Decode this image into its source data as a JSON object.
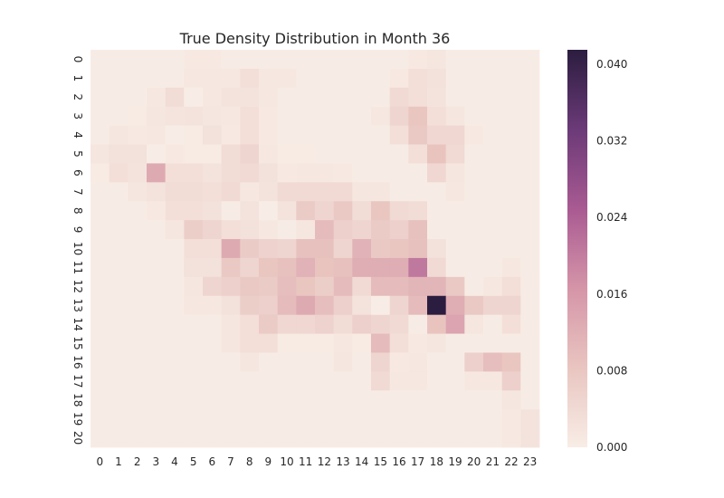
{
  "chart_data": {
    "type": "heatmap",
    "title": "True Density Distribution in Month 36",
    "x_ticks": [
      "0",
      "1",
      "2",
      "3",
      "4",
      "5",
      "6",
      "7",
      "8",
      "9",
      "10",
      "11",
      "12",
      "13",
      "14",
      "15",
      "16",
      "17",
      "18",
      "19",
      "20",
      "21",
      "22",
      "23"
    ],
    "y_ticks": [
      "0",
      "1",
      "2",
      "3",
      "4",
      "5",
      "6",
      "7",
      "8",
      "9",
      "10",
      "11",
      "12",
      "13",
      "14",
      "15",
      "16",
      "17",
      "18",
      "19",
      "20"
    ],
    "colorbar": {
      "ticks": [
        "0.000",
        "0.008",
        "0.016",
        "0.024",
        "0.032",
        "0.040"
      ],
      "vmin": 0.0,
      "vmax": 0.0415,
      "colors": [
        "#f8ede6",
        "#e9c5c0",
        "#d595a8",
        "#a95a92",
        "#6b3a78",
        "#2b1d3f"
      ]
    },
    "values": [
      [
        0.0003,
        0.0003,
        0.0003,
        0.0003,
        0.0003,
        0.0008,
        0.0008,
        0.0003,
        0.0003,
        0.0003,
        0.0003,
        0.0003,
        0.0003,
        0.0003,
        0.0003,
        0.0003,
        0.0003,
        0.0008,
        0.0015,
        0.0003,
        0.0003,
        0.0003,
        0.0003,
        0.0003
      ],
      [
        0.0003,
        0.0003,
        0.0003,
        0.0003,
        0.0003,
        0.001,
        0.0012,
        0.0012,
        0.003,
        0.0012,
        0.001,
        0.0003,
        0.0003,
        0.0003,
        0.0003,
        0.0003,
        0.0008,
        0.003,
        0.0025,
        0.0003,
        0.0003,
        0.0003,
        0.0003,
        0.0003
      ],
      [
        0.0003,
        0.0003,
        0.0003,
        0.001,
        0.0035,
        0.0,
        0.0012,
        0.002,
        0.002,
        0.0012,
        0.0003,
        0.0003,
        0.0003,
        0.0003,
        0.0003,
        0.0003,
        0.004,
        0.003,
        0.002,
        0.0003,
        0.0003,
        0.0003,
        0.0003,
        0.0003
      ],
      [
        0.0003,
        0.0003,
        0.0005,
        0.0015,
        0.0018,
        0.002,
        0.0015,
        0.001,
        0.003,
        0.0008,
        0.0003,
        0.0003,
        0.0003,
        0.0003,
        0.0003,
        0.001,
        0.005,
        0.008,
        0.003,
        0.0015,
        0.0003,
        0.0003,
        0.0003,
        0.0003
      ],
      [
        0.0003,
        0.0015,
        0.0008,
        0.001,
        0.0,
        0.0005,
        0.0025,
        0.0008,
        0.003,
        0.0008,
        0.0003,
        0.0003,
        0.0003,
        0.0003,
        0.0003,
        0.0003,
        0.003,
        0.0075,
        0.0045,
        0.0045,
        0.0008,
        0.0003,
        0.0003,
        0.0003
      ],
      [
        0.0015,
        0.0025,
        0.0025,
        0.0,
        0.0008,
        0.0005,
        0.0005,
        0.0035,
        0.005,
        0.001,
        0.0005,
        0.0005,
        0.0003,
        0.0003,
        0.0003,
        0.0003,
        0.0003,
        0.003,
        0.0085,
        0.004,
        0.0003,
        0.0003,
        0.0003,
        0.0003
      ],
      [
        0.0005,
        0.003,
        0.002,
        0.013,
        0.003,
        0.003,
        0.002,
        0.0035,
        0.004,
        0.0025,
        0.0008,
        0.001,
        0.0012,
        0.0008,
        0.0003,
        0.0003,
        0.0003,
        0.0003,
        0.0045,
        0.0015,
        0.0003,
        0.0003,
        0.0003,
        0.0003
      ],
      [
        0.0003,
        0.0003,
        0.0015,
        0.002,
        0.0035,
        0.0035,
        0.003,
        0.004,
        0.001,
        0.002,
        0.004,
        0.004,
        0.004,
        0.004,
        0.0015,
        0.0015,
        0.0003,
        0.0003,
        0.0003,
        0.001,
        0.0003,
        0.0003,
        0.0003,
        0.0003
      ],
      [
        0.0003,
        0.0003,
        0.0003,
        0.0008,
        0.003,
        0.003,
        0.0025,
        0.0003,
        0.002,
        0.0,
        0.002,
        0.007,
        0.005,
        0.0075,
        0.0035,
        0.008,
        0.004,
        0.0035,
        0.0003,
        0.0003,
        0.0003,
        0.0003,
        0.0003,
        0.0003
      ],
      [
        0.0003,
        0.0003,
        0.0003,
        0.0003,
        0.0015,
        0.0065,
        0.005,
        0.003,
        0.0025,
        0.001,
        0.0003,
        0.0015,
        0.01,
        0.006,
        0.005,
        0.007,
        0.006,
        0.009,
        0.0003,
        0.0003,
        0.0003,
        0.0003,
        0.0003,
        0.0003
      ],
      [
        0.0003,
        0.0003,
        0.0003,
        0.0003,
        0.0003,
        0.003,
        0.003,
        0.013,
        0.007,
        0.0055,
        0.005,
        0.009,
        0.009,
        0.005,
        0.0115,
        0.0075,
        0.008,
        0.009,
        0.0025,
        0.0003,
        0.0003,
        0.0003,
        0.0003,
        0.0003
      ],
      [
        0.0003,
        0.0003,
        0.0003,
        0.0003,
        0.0003,
        0.0025,
        0.0025,
        0.0075,
        0.005,
        0.008,
        0.009,
        0.0115,
        0.0085,
        0.009,
        0.0125,
        0.0125,
        0.0125,
        0.0205,
        0.004,
        0.0003,
        0.0003,
        0.0003,
        0.001,
        0.0003
      ],
      [
        0.0003,
        0.0003,
        0.0003,
        0.0003,
        0.0003,
        0.0015,
        0.005,
        0.006,
        0.0075,
        0.007,
        0.0095,
        0.008,
        0.0065,
        0.01,
        0.004,
        0.01,
        0.01,
        0.011,
        0.011,
        0.0075,
        0.0003,
        0.001,
        0.003,
        0.0003
      ],
      [
        0.0003,
        0.0003,
        0.0003,
        0.0003,
        0.0003,
        0.001,
        0.001,
        0.0025,
        0.0065,
        0.006,
        0.01,
        0.013,
        0.0095,
        0.006,
        0.002,
        0.0,
        0.005,
        0.01,
        0.0415,
        0.0125,
        0.0075,
        0.005,
        0.005,
        0.0003
      ],
      [
        0.0003,
        0.0003,
        0.0003,
        0.0003,
        0.0003,
        0.0003,
        0.0003,
        0.0015,
        0.003,
        0.007,
        0.0045,
        0.0045,
        0.0055,
        0.0035,
        0.006,
        0.005,
        0.004,
        0.0003,
        0.0085,
        0.014,
        0.0015,
        0.0003,
        0.003,
        0.0003
      ],
      [
        0.0003,
        0.0003,
        0.0003,
        0.0003,
        0.0003,
        0.0003,
        0.0003,
        0.0015,
        0.003,
        0.003,
        0.0005,
        0.0005,
        0.0005,
        0.001,
        0.0005,
        0.01,
        0.003,
        0.0008,
        0.0015,
        0.0003,
        0.0003,
        0.0003,
        0.0003,
        0.0003
      ],
      [
        0.0003,
        0.0003,
        0.0003,
        0.0003,
        0.0003,
        0.0003,
        0.0003,
        0.0003,
        0.0015,
        0.0003,
        0.0003,
        0.0003,
        0.0003,
        0.0015,
        0.0003,
        0.005,
        0.0008,
        0.0012,
        0.0003,
        0.0003,
        0.006,
        0.0095,
        0.008,
        0.0003
      ],
      [
        0.0003,
        0.0003,
        0.0003,
        0.0003,
        0.0003,
        0.0003,
        0.0003,
        0.0003,
        0.0003,
        0.0003,
        0.0003,
        0.0003,
        0.0003,
        0.0003,
        0.0003,
        0.004,
        0.0012,
        0.0012,
        0.0003,
        0.0003,
        0.001,
        0.001,
        0.006,
        0.0003
      ],
      [
        0.0003,
        0.0003,
        0.0003,
        0.0003,
        0.0003,
        0.0003,
        0.0003,
        0.0003,
        0.0003,
        0.0003,
        0.0003,
        0.0003,
        0.0003,
        0.0003,
        0.0003,
        0.0003,
        0.0003,
        0.0003,
        0.0003,
        0.0003,
        0.0003,
        0.0003,
        0.0015,
        0.0003
      ],
      [
        0.0003,
        0.0003,
        0.0003,
        0.0003,
        0.0003,
        0.0003,
        0.0003,
        0.0003,
        0.0003,
        0.0003,
        0.0003,
        0.0003,
        0.0003,
        0.0003,
        0.0003,
        0.0003,
        0.0003,
        0.0003,
        0.0003,
        0.0003,
        0.0003,
        0.0003,
        0.0008,
        0.002
      ],
      [
        0.0003,
        0.0003,
        0.0003,
        0.0003,
        0.0003,
        0.0003,
        0.0003,
        0.0003,
        0.0003,
        0.0003,
        0.0003,
        0.0003,
        0.0003,
        0.0003,
        0.0003,
        0.0003,
        0.0003,
        0.0003,
        0.0003,
        0.0003,
        0.0003,
        0.0003,
        0.0008,
        0.002
      ]
    ]
  }
}
